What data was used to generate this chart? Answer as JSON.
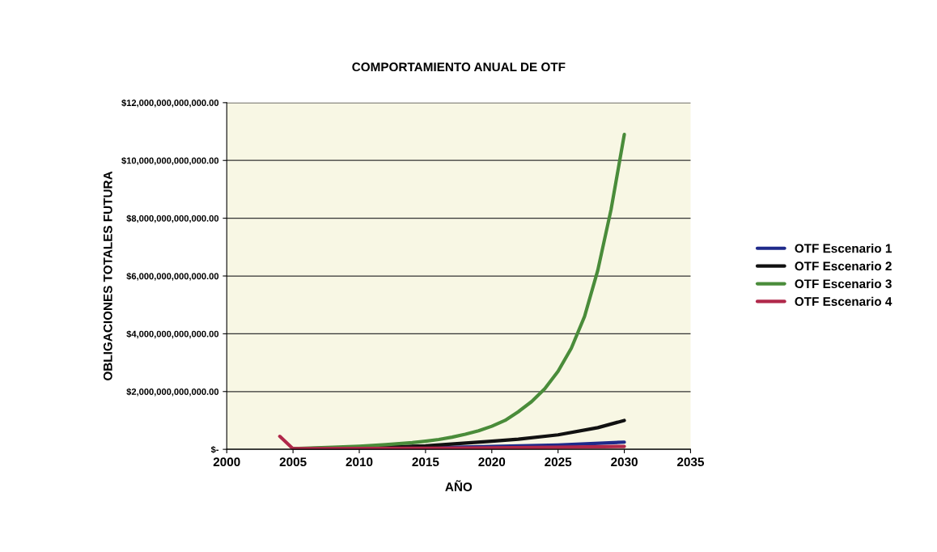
{
  "chart_data": {
    "type": "line",
    "title": "COMPORTAMIENTO ANUAL DE OTF",
    "xlabel": "AÑO",
    "ylabel": "OBLIGACIONES TOTALES FUTURA",
    "xlim": [
      2000,
      2035
    ],
    "xticks": [
      2000,
      2005,
      2010,
      2015,
      2020,
      2025,
      2030,
      2035
    ],
    "ylim": [
      0,
      12000000000000
    ],
    "yticks": [
      {
        "value": 0,
        "label": "$-"
      },
      {
        "value": 2000000000000,
        "label": "$2,000,000,000,000.00"
      },
      {
        "value": 4000000000000,
        "label": "$4,000,000,000,000.00"
      },
      {
        "value": 6000000000000,
        "label": "$6,000,000,000,000.00"
      },
      {
        "value": 8000000000000,
        "label": "$8,000,000,000,000.00"
      },
      {
        "value": 10000000000000,
        "label": "$10,000,000,000,000.00"
      },
      {
        "value": 12000000000000,
        "label": "$12,000,000,000,000.00"
      }
    ],
    "grid": "y",
    "legend": "right",
    "marker": "none",
    "series": [
      {
        "name": "OTF Escenario 1",
        "color": "#1f2a8a",
        "x": [
          2005,
          2010,
          2015,
          2020,
          2025,
          2030
        ],
        "values": [
          20000000000,
          30000000000,
          50000000000,
          100000000000,
          150000000000,
          250000000000
        ]
      },
      {
        "name": "OTF Escenario 2",
        "color": "#111111",
        "x": [
          2005,
          2010,
          2015,
          2020,
          2022,
          2025,
          2028,
          2030
        ],
        "values": [
          20000000000,
          50000000000,
          120000000000,
          280000000000,
          350000000000,
          500000000000,
          750000000000,
          1000000000000
        ]
      },
      {
        "name": "OTF Escenario 3",
        "color": "#4a8c3a",
        "x": [
          2005,
          2008,
          2010,
          2012,
          2014,
          2015,
          2016,
          2017,
          2018,
          2019,
          2020,
          2021,
          2022,
          2023,
          2024,
          2025,
          2026,
          2027,
          2028,
          2029,
          2030
        ],
        "values": [
          20000000000,
          70000000000,
          110000000000,
          160000000000,
          230000000000,
          280000000000,
          340000000000,
          420000000000,
          520000000000,
          640000000000,
          800000000000,
          1000000000000,
          1300000000000,
          1650000000000,
          2100000000000,
          2700000000000,
          3500000000000,
          4600000000000,
          6200000000000,
          8300000000000,
          10900000000000
        ]
      },
      {
        "name": "OTF Escenario 4",
        "color": "#b0284a",
        "x": [
          2004,
          2005,
          2010,
          2015,
          2020,
          2025,
          2030
        ],
        "values": [
          450000000000,
          20000000000,
          30000000000,
          40000000000,
          50000000000,
          70000000000,
          100000000000
        ]
      }
    ]
  }
}
